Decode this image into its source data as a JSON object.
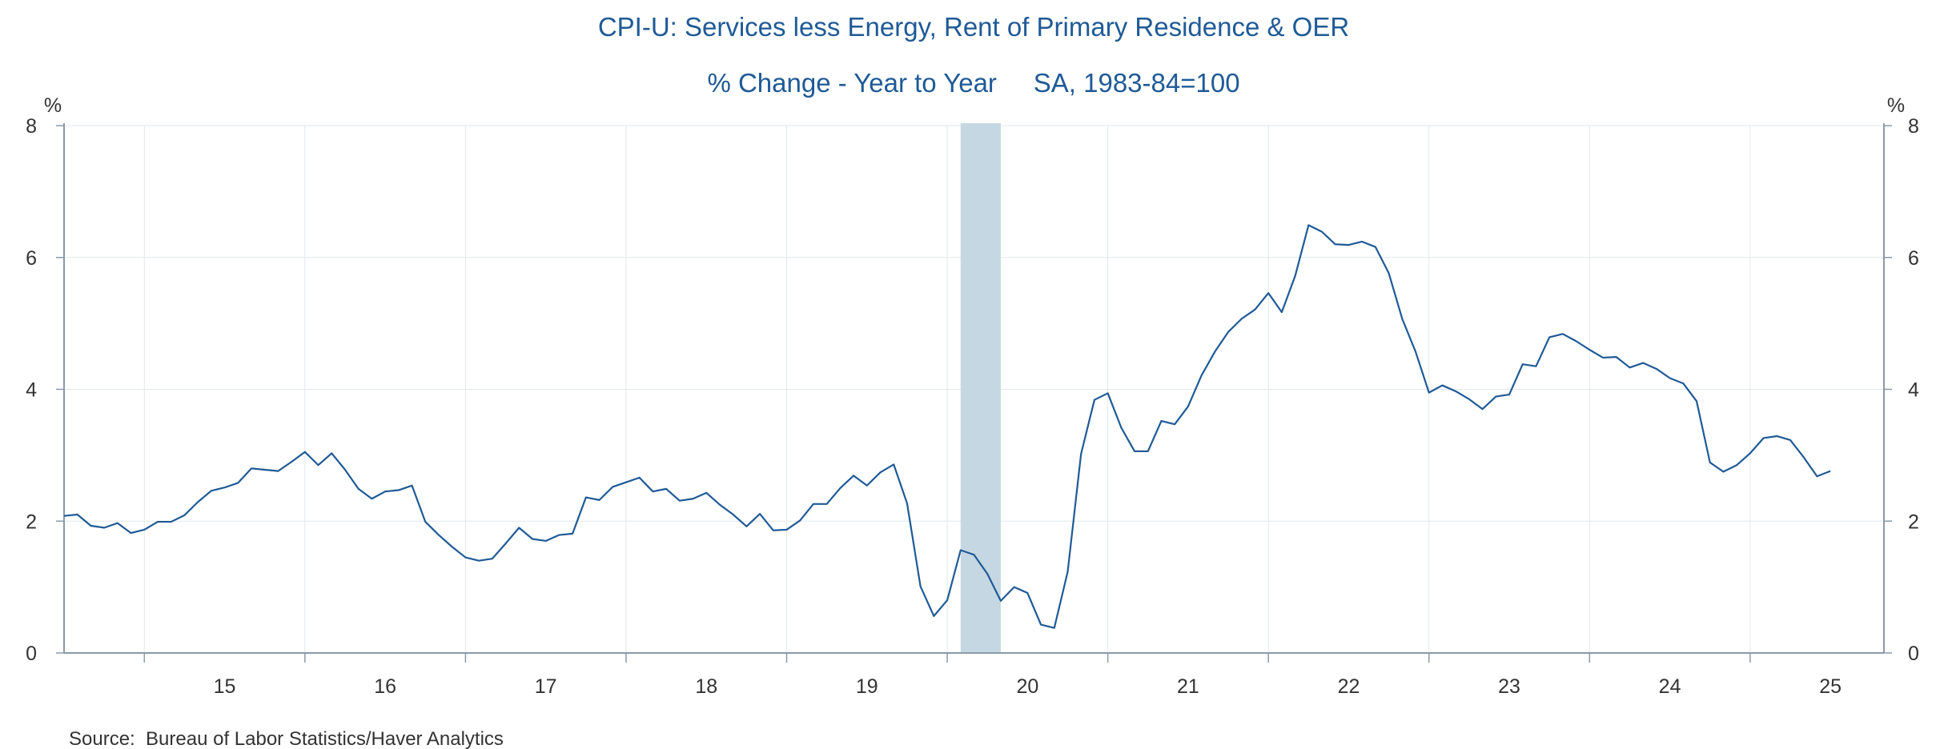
{
  "chart_data": {
    "type": "line",
    "title": "CPI-U: Services less Energy, Rent of Primary Residence & OER",
    "subtitle": "% Change - Year to Year     SA, 1983-84=100",
    "ylabel_left": "%",
    "ylabel_right": "%",
    "ylim": [
      0,
      8
    ],
    "y_ticks": [
      0,
      2,
      4,
      6,
      8
    ],
    "x_ticks": [
      "15",
      "16",
      "17",
      "18",
      "19",
      "20",
      "21",
      "22",
      "23",
      "24",
      "25"
    ],
    "x_range": [
      "2014-07",
      "2025-11"
    ],
    "grid": true,
    "source": "Source:  Bureau of Labor Statistics/Haver Analytics",
    "recession_shading": {
      "start": "2020-02",
      "end": "2020-04",
      "color": "#c5d7e2"
    },
    "series": [
      {
        "color": "#1f5a96",
        "start": "2014-07",
        "frequency": "monthly",
        "values": [
          2.08,
          2.1,
          1.93,
          1.9,
          1.97,
          1.82,
          1.87,
          1.99,
          1.99,
          2.09,
          2.29,
          2.46,
          2.51,
          2.58,
          2.8,
          2.78,
          2.76,
          2.9,
          3.05,
          2.85,
          3.03,
          2.78,
          2.49,
          2.34,
          2.45,
          2.47,
          2.54,
          1.99,
          1.79,
          1.61,
          1.45,
          1.4,
          1.43,
          1.66,
          1.9,
          1.73,
          1.7,
          1.79,
          1.81,
          2.36,
          2.32,
          2.52,
          2.59,
          2.66,
          2.45,
          2.49,
          2.31,
          2.34,
          2.43,
          2.25,
          2.1,
          1.92,
          2.11,
          1.86,
          1.87,
          2.01,
          2.26,
          2.26,
          2.5,
          2.69,
          2.54,
          2.74,
          2.86,
          2.27,
          1.01,
          0.56,
          0.8,
          1.56,
          1.49,
          1.2,
          0.79,
          1.0,
          0.91,
          0.43,
          0.38,
          1.23,
          3.02,
          3.84,
          3.94,
          3.42,
          3.06,
          3.06,
          3.52,
          3.47,
          3.74,
          4.21,
          4.57,
          4.87,
          5.07,
          5.21,
          5.46,
          5.17,
          5.72,
          6.49,
          6.39,
          6.2,
          6.19,
          6.24,
          6.16,
          5.76,
          5.07,
          4.57,
          3.95,
          4.06,
          3.97,
          3.85,
          3.7,
          3.89,
          3.92,
          4.38,
          4.35,
          4.79,
          4.84,
          4.73,
          4.6,
          4.48,
          4.49,
          4.33,
          4.4,
          4.31,
          4.17,
          4.09,
          3.82,
          2.89,
          2.75,
          2.85,
          3.03,
          3.26,
          3.29,
          3.23,
          2.97,
          2.68,
          2.76
        ]
      }
    ]
  }
}
